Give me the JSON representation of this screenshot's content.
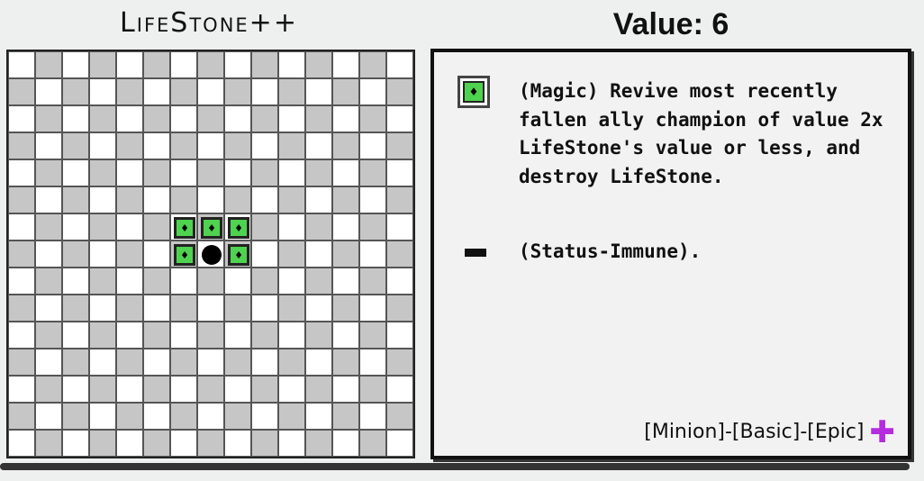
{
  "header": {
    "title": "LifeStone++",
    "value_label": "Value: 6"
  },
  "board": {
    "size": 15,
    "pieces": [
      {
        "row": 6,
        "col": 6,
        "type": "magic-move"
      },
      {
        "row": 6,
        "col": 7,
        "type": "magic-move"
      },
      {
        "row": 6,
        "col": 8,
        "type": "magic-move"
      },
      {
        "row": 7,
        "col": 6,
        "type": "magic-move"
      },
      {
        "row": 7,
        "col": 7,
        "type": "champion"
      },
      {
        "row": 7,
        "col": 8,
        "type": "magic-move"
      }
    ]
  },
  "panel": {
    "abilities": [
      {
        "icon": "magic-icon",
        "text": "(Magic) Revive most recently fallen ally champion of value 2x LifeStone's value or less, and destroy LifeStone."
      },
      {
        "icon": "dash-icon",
        "text": "(Status-Immune)."
      }
    ],
    "tags": "[Minion]-[Basic]-[Epic]",
    "tag_icon": "purple-plus-icon",
    "colors": {
      "magic": "#4fd24f",
      "plus": "#b52be0"
    }
  }
}
